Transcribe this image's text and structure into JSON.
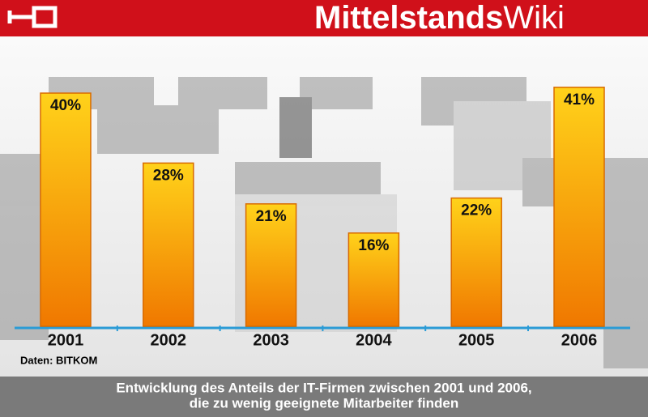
{
  "logo": {
    "main": "Mittelstands",
    "suffix": "Wiki"
  },
  "chart_data": {
    "type": "bar",
    "categories": [
      "2001",
      "2002",
      "2003",
      "2004",
      "2005",
      "2006"
    ],
    "values": [
      40,
      28,
      21,
      16,
      22,
      41
    ],
    "value_labels": [
      "40%",
      "28%",
      "21%",
      "16%",
      "22%",
      "41%"
    ],
    "color": "#f5a800",
    "source": "Daten: BITKOM",
    "caption": [
      "Entwicklung des Anteils der IT-Firmen zwischen 2001 und 2006,",
      "die zu wenig geeignete Mitarbeiter finden"
    ]
  }
}
